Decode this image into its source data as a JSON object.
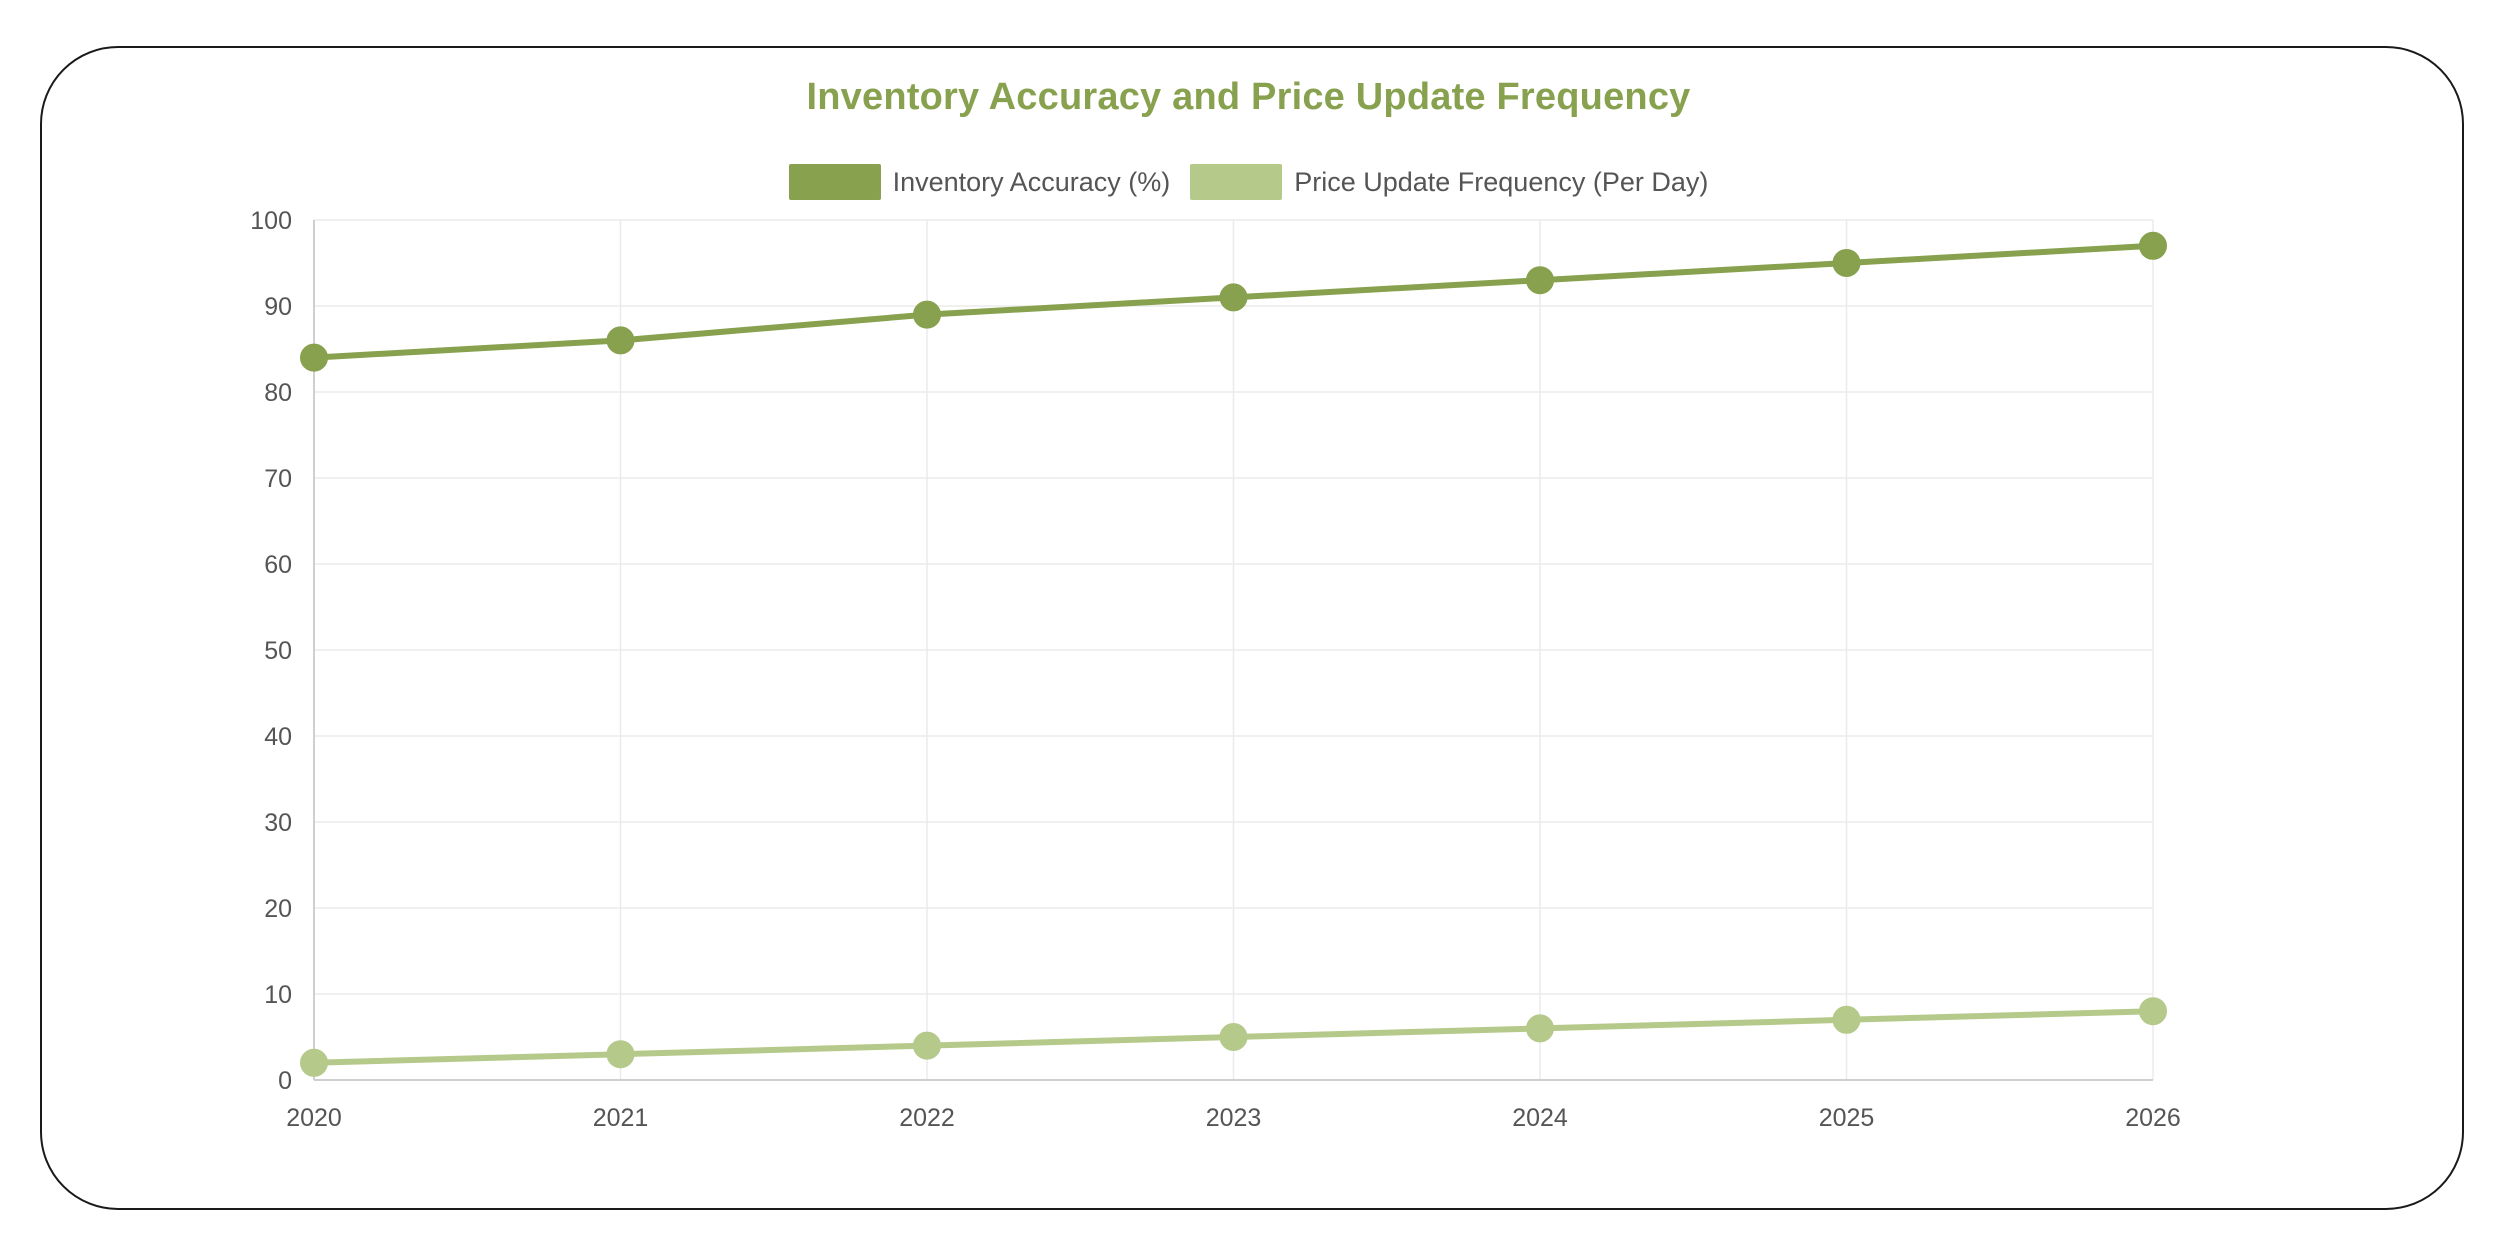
{
  "chart_data": {
    "type": "line",
    "title": "Inventory Accuracy and Price Update Frequency",
    "xlabel": "",
    "ylabel": "",
    "categories": [
      "2020",
      "2021",
      "2022",
      "2023",
      "2024",
      "2025",
      "2026"
    ],
    "series": [
      {
        "name": "Inventory Accuracy (%)",
        "values": [
          84,
          86,
          89,
          91,
          93,
          95,
          97
        ],
        "color": "#87a14e"
      },
      {
        "name": "Price Update Frequency (Per Day)",
        "values": [
          2,
          3,
          4,
          5,
          6,
          7,
          8
        ],
        "color": "#b5c98a"
      }
    ],
    "ylim": [
      0,
      100
    ],
    "yticks": [
      "0",
      "10",
      "20",
      "30",
      "40",
      "50",
      "60",
      "70",
      "80",
      "90",
      "100"
    ],
    "grid": true,
    "legend_position": "top",
    "title_color": "#87a14e"
  }
}
